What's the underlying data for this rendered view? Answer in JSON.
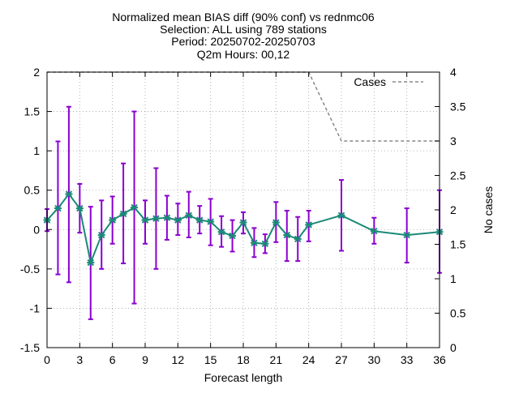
{
  "chart_data": {
    "type": "line",
    "title_lines": [
      "Normalized mean BIAS diff (90% conf) vs rednmc06",
      "Selection: ALL using   789 stations",
      "Period: 20250702-20250703",
      "Q2m   Hours: 00,12"
    ],
    "xlabel": "Forecast length",
    "ylabel": "",
    "y2label": "No cases",
    "xlim": [
      0,
      36
    ],
    "ylim": [
      -1.5,
      2
    ],
    "y2lim": [
      0,
      4
    ],
    "xticks": [
      "0",
      "3",
      "6",
      "9",
      "12",
      "15",
      "18",
      "21",
      "24",
      "27",
      "30",
      "33",
      "36"
    ],
    "yticks": [
      "2",
      "1.5",
      "1",
      "0.5",
      "0",
      "-0.5",
      "-1",
      "-1.5"
    ],
    "y2ticks": [
      "4",
      "3.5",
      "3",
      "2.5",
      "2",
      "1.5",
      "1",
      "0.5",
      "0"
    ],
    "grid": true,
    "legend_position": "top-right",
    "colors": {
      "line": "#1a8a78",
      "marker": "#1a8a78",
      "errorbar": "#8a00cf",
      "cases": "#888888"
    },
    "series": [
      {
        "style": "line-with-errorbars",
        "axis": "left",
        "x": [
          0,
          1,
          2,
          3,
          4,
          5,
          6,
          7,
          8,
          9,
          10,
          11,
          12,
          13,
          14,
          15,
          16,
          17,
          18,
          19,
          20,
          21,
          22,
          23,
          24,
          27,
          30,
          33,
          36
        ],
        "y": [
          0.12,
          0.27,
          0.45,
          0.27,
          -0.42,
          -0.07,
          0.12,
          0.2,
          0.28,
          0.12,
          0.14,
          0.15,
          0.12,
          0.18,
          0.12,
          0.1,
          -0.03,
          -0.08,
          0.09,
          -0.17,
          -0.18,
          0.09,
          -0.07,
          -0.12,
          0.06,
          0.18,
          -0.02,
          -0.07,
          -0.03
        ],
        "y_low": [
          -0.02,
          -0.57,
          -0.67,
          -0.04,
          -1.14,
          -0.5,
          -0.18,
          -0.43,
          -0.94,
          -0.18,
          -0.5,
          -0.13,
          -0.07,
          -0.1,
          -0.05,
          -0.2,
          -0.22,
          -0.28,
          -0.05,
          -0.35,
          -0.3,
          -0.16,
          -0.4,
          -0.4,
          -0.15,
          -0.27,
          -0.18,
          -0.42,
          -0.55
        ],
        "y_high": [
          0.26,
          1.12,
          1.56,
          0.58,
          0.29,
          0.37,
          0.42,
          0.84,
          1.5,
          0.37,
          0.78,
          0.43,
          0.33,
          0.48,
          0.3,
          0.39,
          0.17,
          0.12,
          0.22,
          0.02,
          -0.06,
          0.35,
          0.24,
          0.16,
          0.24,
          0.63,
          0.15,
          0.27,
          0.5
        ]
      },
      {
        "name": "Cases",
        "style": "dashed",
        "axis": "right",
        "x": [
          0,
          24,
          27,
          36
        ],
        "y": [
          4,
          4,
          3,
          3
        ]
      }
    ]
  }
}
